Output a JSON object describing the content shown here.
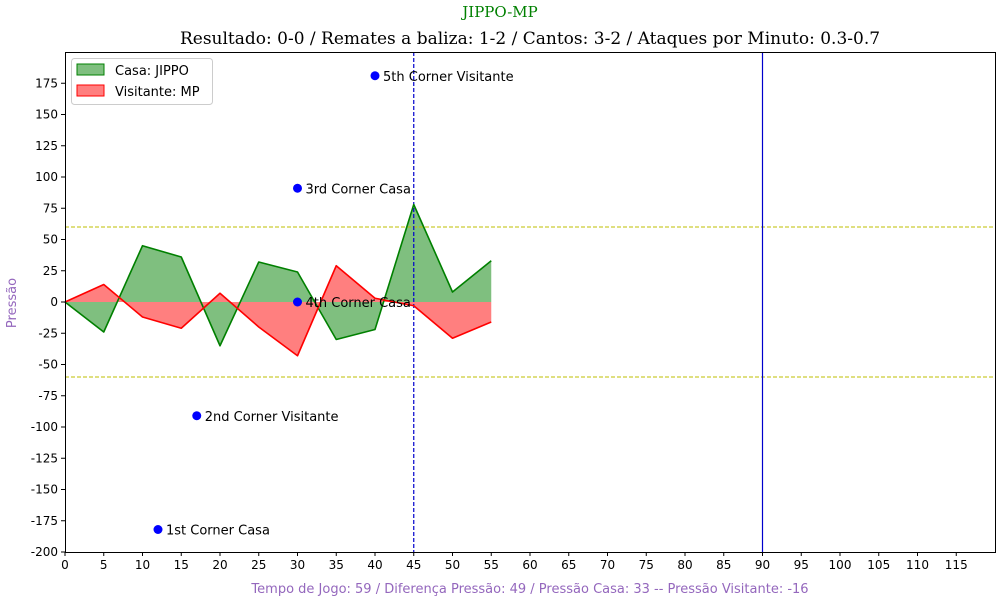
{
  "chart_data": {
    "type": "area",
    "suptitle": "JIPPO-MP",
    "title": "Resultado: 0-0 / Remates a baliza: 1-2 / Cantos: 3-2 / Ataques por Minuto: 0.3-0.7",
    "xlabel": "Tempo de Jogo: 59 / Diferença Pressão: 49 / Pressão Casa: 33 -- Pressão Visitante: -16",
    "ylabel": "Pressão",
    "xlim": [
      0,
      120
    ],
    "ylim": [
      -200,
      200
    ],
    "xticks": [
      0,
      5,
      10,
      15,
      20,
      25,
      30,
      35,
      40,
      45,
      50,
      55,
      60,
      65,
      70,
      75,
      80,
      85,
      90,
      95,
      100,
      105,
      110,
      115
    ],
    "yticks": [
      -200,
      -175,
      -150,
      -125,
      -100,
      -75,
      -50,
      -25,
      0,
      25,
      50,
      75,
      100,
      125,
      150,
      175
    ],
    "x": [
      0,
      5,
      10,
      15,
      20,
      25,
      30,
      35,
      40,
      45,
      50,
      55
    ],
    "series": [
      {
        "name": "Casa: JIPPO",
        "color": "#008000",
        "fill": "#7fbf7f",
        "values": [
          0,
          -24,
          45,
          36,
          -35,
          32,
          24,
          -30,
          -22,
          78,
          8,
          33
        ]
      },
      {
        "name": "Visitante: MP",
        "color": "#ff0000",
        "fill": "#ff7f7f",
        "values": [
          0,
          14,
          -12,
          -21,
          7,
          -20,
          -43,
          29,
          3,
          -3,
          -29,
          -16
        ]
      }
    ],
    "hlines": [
      {
        "y": 60,
        "color": "#bfbf00",
        "style": "dashed"
      },
      {
        "y": -60,
        "color": "#bfbf00",
        "style": "dashed"
      }
    ],
    "vlines": [
      {
        "x": 45,
        "color": "#0000cc",
        "style": "dashed"
      },
      {
        "x": 90,
        "color": "#0000cc",
        "style": "solid"
      }
    ],
    "corners": [
      {
        "x": 12,
        "y": -182,
        "label": "1st Corner Casa"
      },
      {
        "x": 17,
        "y": -91,
        "label": "2nd Corner Visitante"
      },
      {
        "x": 30,
        "y": 91,
        "label": "3rd Corner Casa"
      },
      {
        "x": 30,
        "y": 0,
        "label": "4th Corner Casa"
      },
      {
        "x": 40,
        "y": 181,
        "label": "5th Corner Visitante"
      }
    ],
    "corner_color": "#0000ff",
    "grid": false,
    "legend_position": "top-left"
  }
}
